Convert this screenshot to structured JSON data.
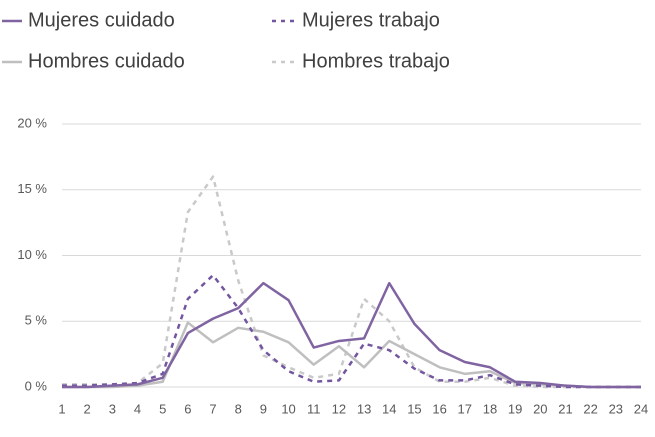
{
  "chart_data": {
    "type": "line",
    "x": [
      1,
      2,
      3,
      4,
      5,
      6,
      7,
      8,
      9,
      10,
      11,
      12,
      13,
      14,
      15,
      16,
      17,
      18,
      19,
      20,
      21,
      22,
      23,
      24
    ],
    "xlim": [
      1,
      24
    ],
    "xticks": [
      1,
      2,
      3,
      4,
      5,
      6,
      7,
      8,
      9,
      10,
      11,
      12,
      13,
      14,
      15,
      16,
      17,
      18,
      19,
      20,
      21,
      22,
      23,
      24
    ],
    "ylim": [
      0,
      20
    ],
    "yticks": [
      {
        "value": 0,
        "label": "0 %"
      },
      {
        "value": 5,
        "label": "5 %"
      },
      {
        "value": 10,
        "label": "10 %"
      },
      {
        "value": 15,
        "label": "15 %"
      },
      {
        "value": 20,
        "label": "20 %"
      }
    ],
    "grid": true,
    "legend": "top-left",
    "series": [
      {
        "name": "Mujeres cuidado",
        "color": "#8064a2",
        "style": "solid",
        "values": [
          0,
          0,
          0.1,
          0.2,
          0.7,
          4.1,
          5.2,
          6.0,
          7.9,
          6.6,
          3.0,
          3.5,
          3.7,
          7.9,
          4.8,
          2.8,
          1.9,
          1.5,
          0.4,
          0.3,
          0.1,
          0,
          0,
          0
        ]
      },
      {
        "name": "Mujeres trabajo",
        "color": "#7356a0",
        "style": "dashed",
        "values": [
          0.1,
          0.1,
          0.2,
          0.3,
          1.0,
          6.7,
          8.5,
          6.0,
          2.8,
          1.2,
          0.4,
          0.5,
          3.3,
          2.8,
          1.4,
          0.5,
          0.5,
          0.9,
          0.2,
          0.1,
          0,
          0,
          0,
          0
        ]
      },
      {
        "name": "Hombres cuidado",
        "color": "#bfbfbf",
        "style": "solid",
        "values": [
          0,
          0,
          0,
          0.1,
          0.4,
          4.9,
          3.4,
          4.5,
          4.2,
          3.4,
          1.7,
          3.1,
          1.5,
          3.5,
          2.5,
          1.5,
          1.0,
          1.2,
          0.3,
          0.2,
          0.1,
          0,
          0,
          0
        ]
      },
      {
        "name": "Hombres trabajo",
        "color": "#c9c9c9",
        "style": "dashed",
        "values": [
          0.2,
          0.2,
          0.2,
          0.3,
          1.8,
          13.3,
          16.0,
          8.1,
          2.4,
          1.5,
          0.7,
          1.0,
          6.7,
          5.0,
          1.5,
          0.4,
          0.4,
          0.7,
          0.1,
          0,
          0,
          0,
          0,
          0
        ]
      }
    ]
  }
}
